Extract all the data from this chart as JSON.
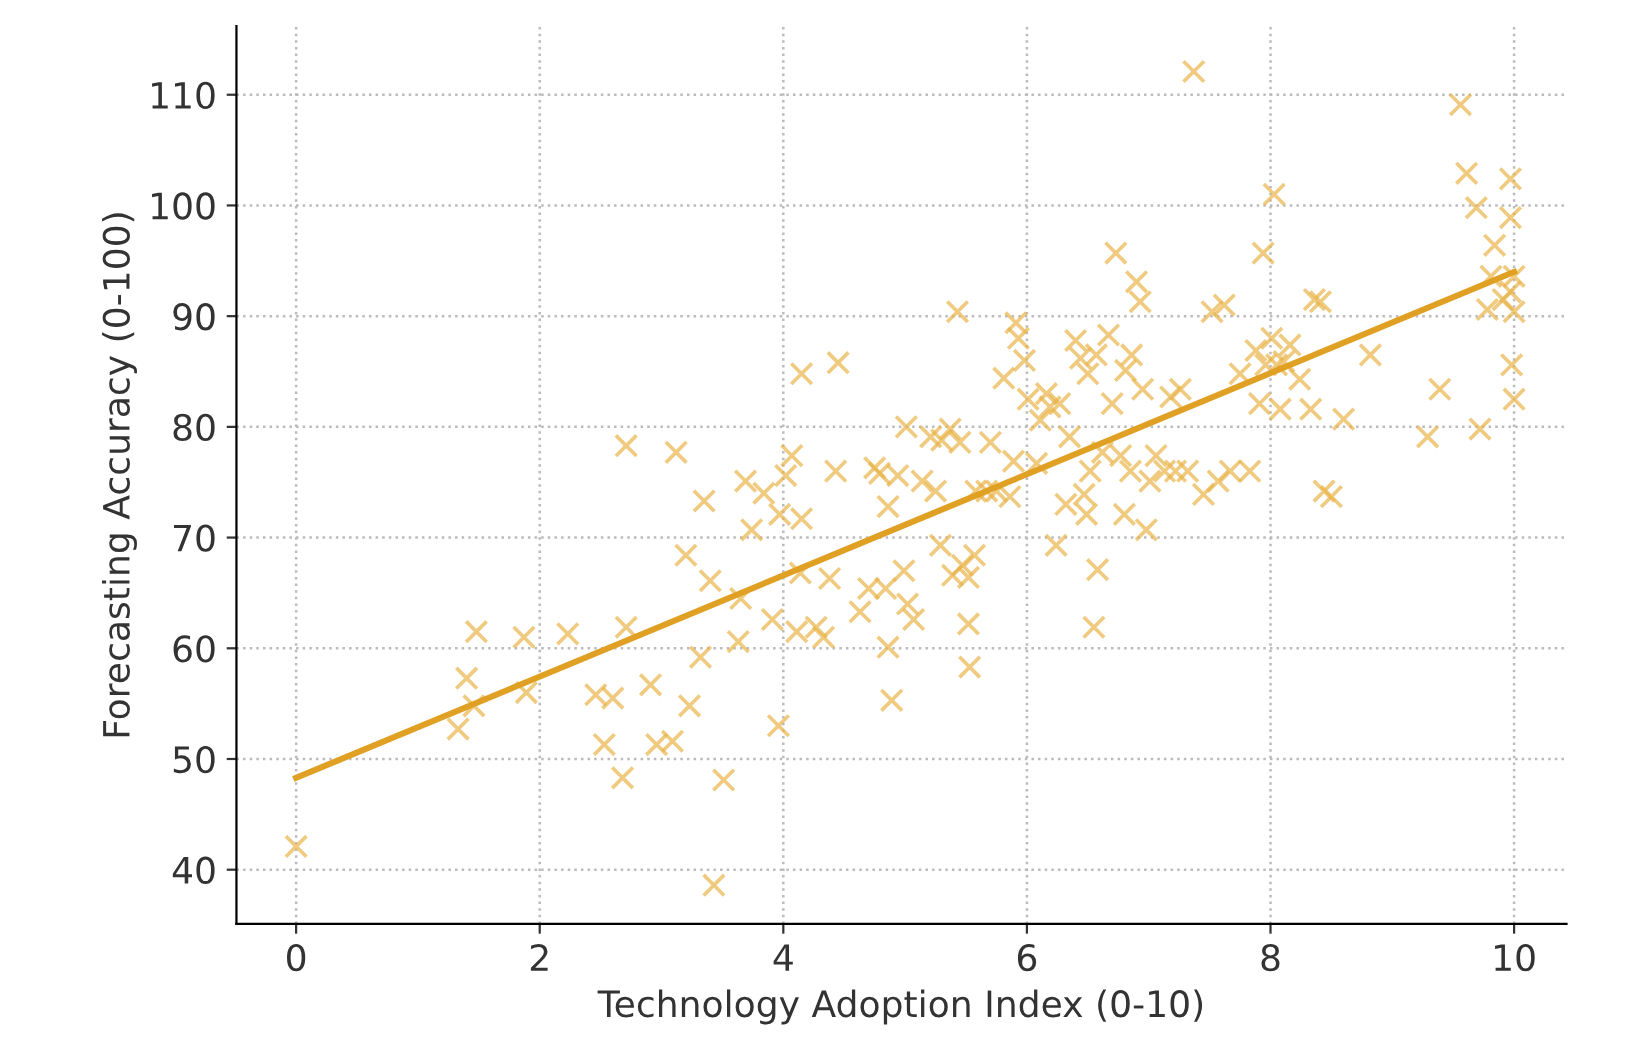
{
  "chart_data": {
    "type": "scatter",
    "xlabel": "Technology Adoption Index (0-10)",
    "ylabel": "Forecasting Accuracy (0-100)",
    "xlim": [
      -0.49,
      10.43
    ],
    "ylim": [
      35.1,
      116.2
    ],
    "xticks": [
      0,
      2,
      4,
      6,
      8,
      10
    ],
    "yticks": [
      40,
      50,
      60,
      70,
      80,
      90,
      100,
      110
    ],
    "grid": true,
    "legend": false,
    "series": [
      {
        "marker": "cross",
        "color": "#e8b449",
        "x": [
          0,
          1.33,
          1.4,
          1.48,
          1.46,
          1.89,
          1.87,
          2.23,
          2.46,
          2.53,
          2.6,
          2.68,
          2.71,
          2.71,
          2.91,
          2.96,
          3.09,
          3.12,
          3.2,
          3.23,
          3.32,
          3.35,
          3.4,
          3.43,
          3.51,
          3.63,
          3.65,
          3.69,
          3.74,
          3.84,
          3.91,
          3.96,
          3.97,
          4.02,
          4.07,
          4.11,
          4.14,
          4.15,
          4.15,
          4.27,
          4.33,
          4.38,
          4.43,
          4.45,
          4.63,
          4.7,
          4.75,
          4.79,
          4.86,
          4.84,
          4.86,
          4.89,
          4.94,
          4.99,
          5.01,
          5.02,
          5.07,
          5.14,
          5.21,
          5.25,
          5.29,
          5.3,
          5.37,
          5.39,
          5.43,
          5.45,
          5.47,
          5.52,
          5.52,
          5.53,
          5.57,
          5.58,
          5.67,
          5.7,
          5.75,
          5.81,
          5.86,
          5.89,
          5.91,
          5.93,
          5.98,
          6.01,
          6.08,
          6.11,
          6.16,
          6.19,
          6.24,
          6.27,
          6.32,
          6.35,
          6.4,
          6.44,
          6.47,
          6.49,
          6.5,
          6.52,
          6.55,
          6.58,
          6.57,
          6.62,
          6.67,
          6.7,
          6.73,
          6.77,
          6.8,
          6.81,
          6.85,
          6.86,
          6.9,
          6.93,
          6.95,
          6.98,
          7.01,
          7.06,
          7.13,
          7.18,
          7.22,
          7.26,
          7.32,
          7.37,
          7.45,
          7.52,
          7.57,
          7.62,
          7.67,
          7.75,
          7.83,
          7.88,
          7.91,
          7.94,
          7.96,
          8.03,
          8.01,
          8.05,
          8.08,
          8.11,
          8.16,
          8.24,
          8.33,
          8.36,
          8.41,
          8.44,
          8.5,
          8.6,
          8.82,
          9.29,
          9.39,
          9.56,
          9.61,
          9.69,
          9.72,
          9.78,
          9.81,
          9.84,
          9.91,
          9.97,
          9.97,
          9.98,
          10.0,
          9.97,
          10.0,
          10.0
        ],
        "values": [
          42.1,
          52.7,
          57.3,
          61.5,
          54.8,
          56.0,
          61.0,
          61.3,
          55.8,
          51.3,
          55.5,
          48.3,
          78.3,
          61.9,
          56.7,
          51.3,
          51.6,
          77.7,
          68.4,
          54.8,
          59.2,
          73.3,
          66.1,
          38.6,
          48.1,
          60.6,
          64.5,
          75.1,
          70.7,
          74.0,
          62.6,
          53.0,
          72.1,
          75.6,
          77.4,
          61.5,
          66.8,
          71.7,
          84.8,
          61.9,
          61.0,
          66.3,
          76.0,
          85.8,
          63.3,
          65.4,
          76.3,
          75.8,
          72.8,
          65.4,
          60.1,
          55.3,
          75.6,
          67.0,
          80.0,
          64.0,
          62.6,
          75.1,
          79.1,
          74.2,
          69.3,
          78.8,
          79.8,
          66.6,
          90.4,
          78.6,
          67.5,
          66.4,
          62.2,
          58.3,
          68.4,
          74.2,
          74.2,
          78.6,
          74.2,
          84.4,
          73.7,
          76.9,
          89.4,
          88.0,
          86.0,
          82.5,
          76.7,
          80.6,
          83.0,
          81.8,
          69.3,
          82.1,
          73.0,
          79.1,
          87.8,
          86.2,
          73.9,
          72.1,
          84.8,
          76.0,
          61.9,
          67.1,
          86.5,
          77.7,
          88.3,
          82.1,
          95.7,
          77.4,
          72.1,
          85.1,
          76.0,
          86.5,
          93.1,
          91.3,
          83.4,
          70.7,
          75.1,
          77.4,
          76.0,
          82.7,
          76.0,
          83.4,
          76.0,
          112.1,
          73.9,
          90.4,
          75.1,
          91.0,
          76.0,
          84.8,
          76.0,
          86.9,
          82.1,
          95.7,
          85.6,
          101.0,
          88.0,
          85.6,
          81.6,
          85.9,
          87.4,
          84.3,
          81.6,
          91.5,
          91.3,
          74.2,
          73.7,
          80.7,
          86.5,
          79.1,
          83.4,
          109.1,
          102.9,
          99.8,
          79.8,
          90.6,
          93.6,
          96.4,
          91.5,
          102.4,
          98.9,
          85.6,
          82.5,
          92.2,
          90.4,
          93.6
        ]
      },
      {
        "type": "line",
        "marker": "none",
        "line_style": "solid",
        "color": "#e0a024",
        "x": [
          0,
          10
        ],
        "values": [
          48.3,
          94.0
        ]
      }
    ]
  }
}
